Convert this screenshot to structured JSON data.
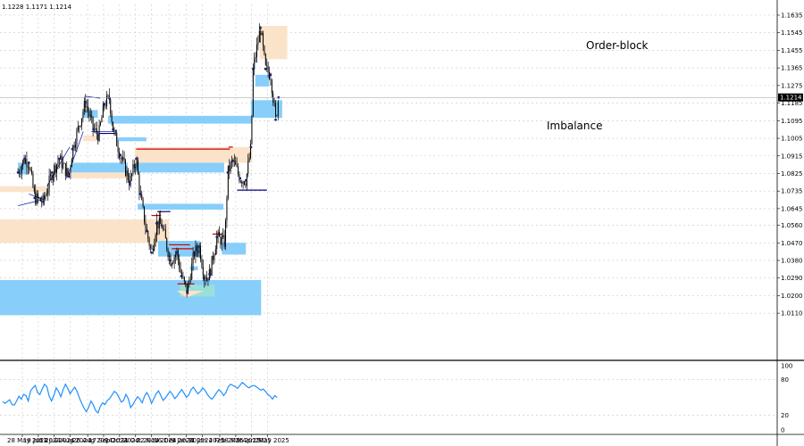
{
  "header": {
    "ohlc": "1.1228 1.1171 1.1214"
  },
  "colors": {
    "background": "#ffffff",
    "grid": "#c8c8c8",
    "candle": "#000000",
    "imbalance_zone": "#87cefa",
    "order_block_zone": "#fbe3c9",
    "overlap_zone": "#9fe2d2",
    "sweep_line": "#cc0000",
    "support_line": "#000080",
    "trend_line": "#1a2fb0",
    "oscillator": "#1e90ff",
    "price_tag_bg": "#000000",
    "dot_marker": "#1a237e"
  },
  "zone_labels": {
    "order_block": "Order-block",
    "imbalance": "Imbalance"
  },
  "chart_data": [
    {
      "type": "candlestick",
      "title": "",
      "price_axis": {
        "min": 1.0075,
        "max": 1.1695,
        "ticks": [
          "1.1635",
          "1.1545",
          "1.1455",
          "1.1365",
          "1.1275",
          "1.1185",
          "1.1095",
          "1.1005",
          "1.0915",
          "1.0825",
          "1.0735",
          "1.0645",
          "1.0560",
          "1.0470",
          "1.0380",
          "1.0290",
          "1.0200",
          "1.0110"
        ],
        "current_price": "1.1214"
      },
      "x_axis": {
        "labels": [
          "28 May 2024",
          "19 Jun 2024",
          "11 Jul 2024",
          "2 Aug 2024",
          "26 Aug 2024",
          "17 Sep 2024",
          "9 Oct 2024",
          "31 Oct 2024",
          "22 Nov 2024",
          "16 Dec 2024",
          "9 Jan 2025",
          "31 Jan 2025",
          "24 Feb 2025",
          "18 Mar 2025",
          "9 Apr 2025",
          "1 May 2025"
        ]
      },
      "price_path": [
        [
          "22 May 2024",
          1.083
        ],
        [
          "31 May 2024",
          1.09
        ],
        [
          "6 Jun 2024",
          1.088
        ],
        [
          "14 Jun 2024",
          1.07
        ],
        [
          "26 Jun 2024",
          1.068
        ],
        [
          "8 Jul 2024",
          1.083
        ],
        [
          "18 Jul 2024",
          1.09
        ],
        [
          "31 Jul 2024",
          1.081
        ],
        [
          "5 Aug 2024",
          1.095
        ],
        [
          "23 Aug 2024",
          1.119
        ],
        [
          "3 Sep 2024",
          1.105
        ],
        [
          "10 Sep 2024",
          1.102
        ],
        [
          "18 Sep 2024",
          1.118
        ],
        [
          "25 Sep 2024",
          1.121
        ],
        [
          "30 Sep 2024",
          1.105
        ],
        [
          "10 Oct 2024",
          1.092
        ],
        [
          "23 Oct 2024",
          1.078
        ],
        [
          "1 Nov 2024",
          1.09
        ],
        [
          "6 Nov 2024",
          1.072
        ],
        [
          "15 Nov 2024",
          1.053
        ],
        [
          "22 Nov 2024",
          1.042
        ],
        [
          "29 Nov 2024",
          1.057
        ],
        [
          "6 Dec 2024",
          1.056
        ],
        [
          "18 Dec 2024",
          1.038
        ],
        [
          "27 Dec 2024",
          1.042
        ],
        [
          "2 Jan 2025",
          1.03
        ],
        [
          "10 Jan 2025",
          1.022
        ],
        [
          "20 Jan 2025",
          1.042
        ],
        [
          "27 Jan 2025",
          1.045
        ],
        [
          "3 Feb 2025",
          1.029
        ],
        [
          "10 Feb 2025",
          1.031
        ],
        [
          "20 Feb 2025",
          1.05
        ],
        [
          "3 Mar 2025",
          1.047
        ],
        [
          "7 Mar 2025",
          1.083
        ],
        [
          "14 Mar 2025",
          1.089
        ],
        [
          "24 Mar 2025",
          1.08
        ],
        [
          "1 Apr 2025",
          1.079
        ],
        [
          "8 Apr 2025",
          1.096
        ],
        [
          "11 Apr 2025",
          1.136
        ],
        [
          "21 Apr 2025",
          1.157
        ],
        [
          "28 Apr 2025",
          1.136
        ],
        [
          "5 May 2025",
          1.133
        ],
        [
          "12 May 2025",
          1.11
        ],
        [
          "16 May 2025",
          1.1214
        ]
      ]
    },
    {
      "type": "line",
      "title": "",
      "y_axis": {
        "min": 0,
        "max": 100,
        "ticks": [
          "100",
          "80",
          "20",
          "0"
        ]
      },
      "values": [
        43,
        40,
        43,
        46,
        38,
        37,
        44,
        52,
        47,
        55,
        53,
        44,
        61,
        66,
        70,
        58,
        55,
        64,
        72,
        68,
        52,
        44,
        53,
        66,
        60,
        51,
        63,
        72,
        65,
        56,
        62,
        67,
        60,
        49,
        40,
        32,
        26,
        34,
        44,
        37,
        28,
        24,
        35,
        41,
        38,
        45,
        48,
        54,
        60,
        57,
        50,
        42,
        45,
        55,
        48,
        33,
        38,
        45,
        51,
        47,
        41,
        52,
        58,
        51,
        40,
        48,
        56,
        61,
        53,
        45,
        49,
        55,
        60,
        55,
        48,
        52,
        58,
        63,
        57,
        50,
        54,
        63,
        67,
        61,
        56,
        60,
        66,
        62,
        55,
        50,
        47,
        52,
        58,
        63,
        59,
        53,
        58,
        68,
        72,
        70,
        68,
        65,
        70,
        75,
        72,
        68,
        66,
        69,
        70,
        68,
        65,
        62,
        64,
        60,
        55,
        52,
        47,
        53,
        50
      ]
    }
  ]
}
